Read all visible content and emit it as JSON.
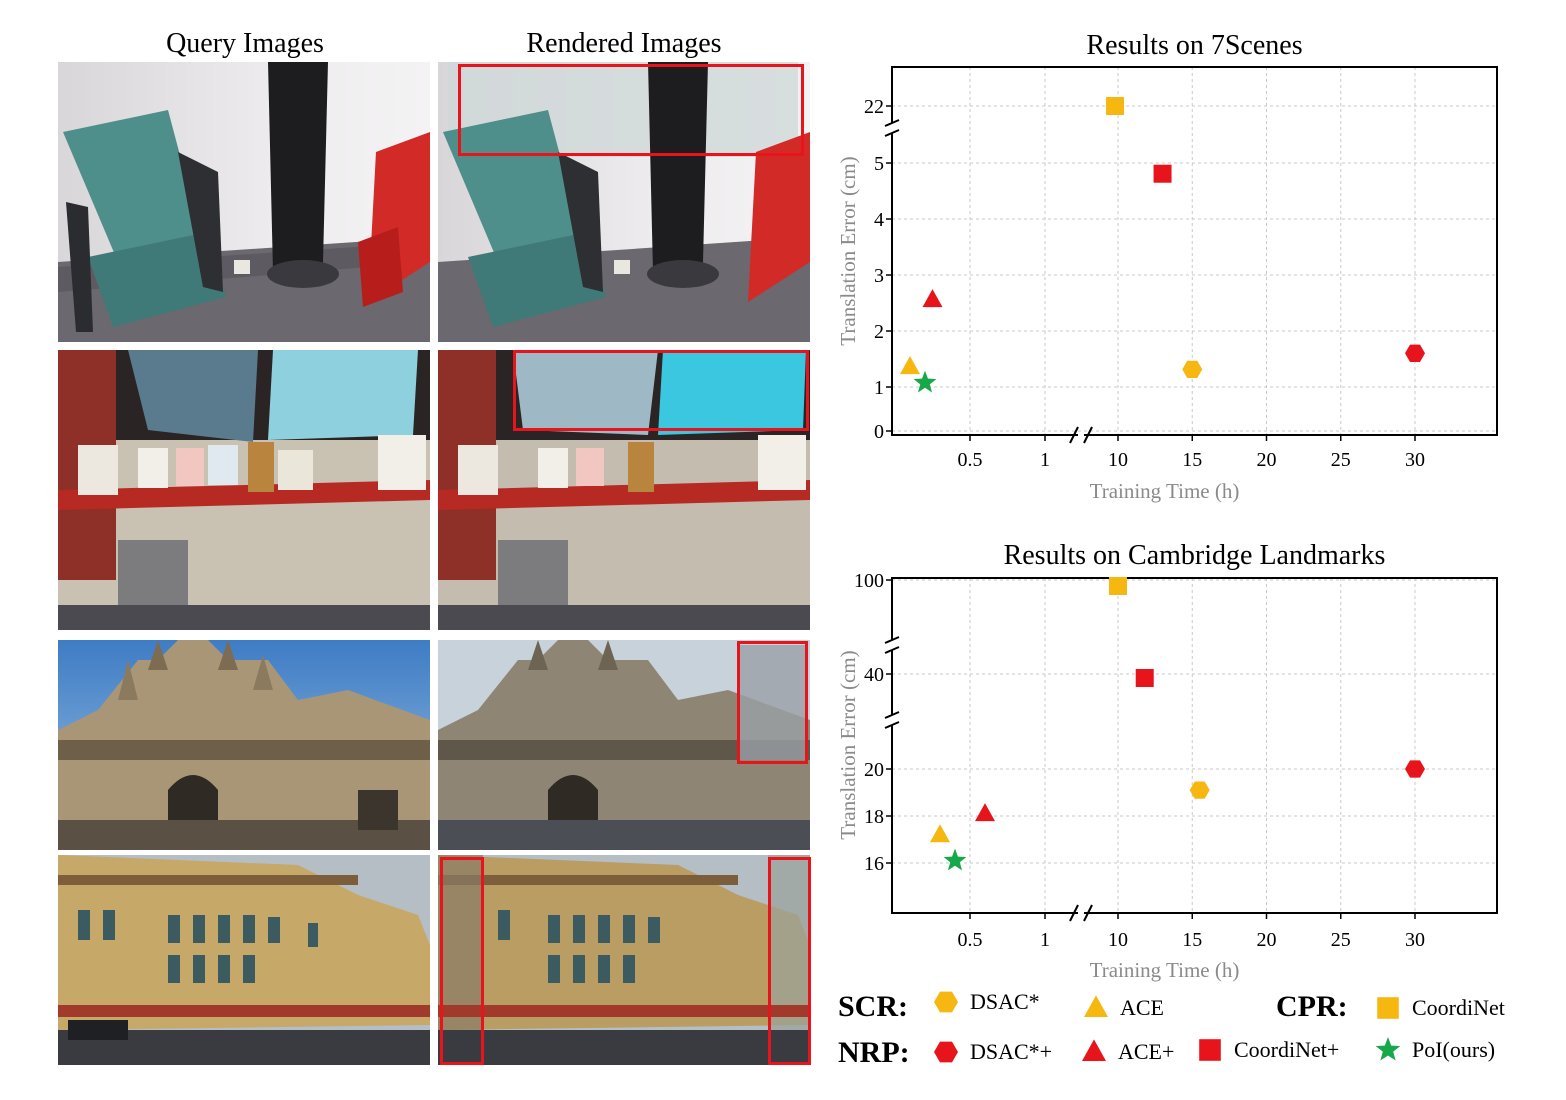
{
  "figure": {
    "col_titles": {
      "query": "Query Images",
      "rendered": "Rendered Images"
    },
    "photo_rows": [
      {
        "scene": "indoor-chair-coat"
      },
      {
        "scene": "indoor-shelf-monitors"
      },
      {
        "scene": "kings-college-facade"
      },
      {
        "scene": "brick-building-facade"
      }
    ],
    "highlight_color": "#e8141c"
  },
  "chart_data": [
    {
      "type": "scatter",
      "title": "Results on 7Scenes",
      "xlabel": "Training Time (h)",
      "ylabel": "Translation Error (cm)",
      "x_ticks": [
        "0.5",
        "1",
        "10",
        "15",
        "20",
        "25",
        "30"
      ],
      "y_ticks": [
        "0",
        "1",
        "2",
        "3",
        "4",
        "5",
        "22"
      ],
      "x_axis_break": "between 1 and 10",
      "y_axis_break": "between 5 and 22",
      "grid": true,
      "points": [
        {
          "method": "DSAC*",
          "x": 15,
          "y": 1.15
        },
        {
          "method": "ACE",
          "x": 0.1,
          "y": 1.2
        },
        {
          "method": "CoordiNet",
          "x": 9.8,
          "y": 22
        },
        {
          "method": "DSAC*+",
          "x": 30,
          "y": 1.45
        },
        {
          "method": "ACE+",
          "x": 0.25,
          "y": 2.45
        },
        {
          "method": "CoordiNet+",
          "x": 13,
          "y": 4.8
        },
        {
          "method": "PoI(ours)",
          "x": 0.2,
          "y": 0.9
        }
      ]
    },
    {
      "type": "scatter",
      "title": "Results on Cambridge Landmarks",
      "xlabel": "Training Time (h)",
      "ylabel": "Translation Error (cm)",
      "x_ticks": [
        "0.5",
        "1",
        "10",
        "15",
        "20",
        "25",
        "30"
      ],
      "y_ticks": [
        "16",
        "18",
        "20",
        "40",
        "100"
      ],
      "x_axis_break": "between 1 and 10",
      "y_axis_break": "between 20 and 40, and between 40 and 100",
      "grid": true,
      "points": [
        {
          "method": "DSAC*",
          "x": 15.5,
          "y": 19.1
        },
        {
          "method": "ACE",
          "x": 0.3,
          "y": 17.2
        },
        {
          "method": "CoordiNet",
          "x": 10,
          "y": 100
        },
        {
          "method": "DSAC*+",
          "x": 30,
          "y": 20
        },
        {
          "method": "ACE+",
          "x": 0.6,
          "y": 18.1
        },
        {
          "method": "CoordiNet+",
          "x": 11.8,
          "y": 36
        },
        {
          "method": "PoI(ours)",
          "x": 0.4,
          "y": 16.1
        }
      ]
    }
  ],
  "legend": {
    "scr_label": "SCR:",
    "cpr_label": "CPR:",
    "nrp_label": "NRP:",
    "items": [
      {
        "label": "DSAC*",
        "shape": "hexagon",
        "color": "#f5b710"
      },
      {
        "label": "ACE",
        "shape": "triangle",
        "color": "#f5b710"
      },
      {
        "label": "CoordiNet",
        "shape": "square",
        "color": "#f5b710"
      },
      {
        "label": "DSAC*+",
        "shape": "hexagon",
        "color": "#e8141c"
      },
      {
        "label": "ACE+",
        "shape": "triangle",
        "color": "#e8141c"
      },
      {
        "label": "CoordiNet+",
        "shape": "square",
        "color": "#e8141c"
      },
      {
        "label": "PoI(ours)",
        "shape": "star",
        "color": "#17a84a"
      }
    ]
  }
}
